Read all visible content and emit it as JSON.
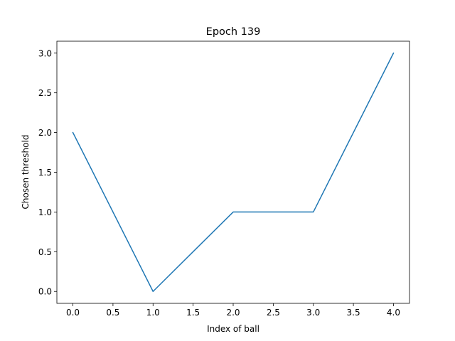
{
  "chart_data": {
    "type": "line",
    "title": "Epoch 139",
    "xlabel": "Index of ball",
    "ylabel": "Chosen threshold",
    "x": [
      0,
      1,
      2,
      3,
      4
    ],
    "series": [
      {
        "values": [
          2,
          0,
          1,
          1,
          3
        ],
        "color": "#1f77b4"
      }
    ],
    "xlim": [
      -0.2,
      4.2
    ],
    "ylim": [
      -0.15,
      3.15
    ],
    "xticks": [
      "0.0",
      "0.5",
      "1.0",
      "1.5",
      "2.0",
      "2.5",
      "3.0",
      "3.5",
      "4.0"
    ],
    "yticks": [
      "0.0",
      "0.5",
      "1.0",
      "1.5",
      "2.0",
      "2.5",
      "3.0"
    ],
    "grid": false,
    "legend": "none"
  }
}
